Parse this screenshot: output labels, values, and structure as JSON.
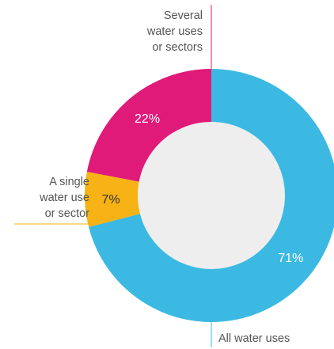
{
  "chart_data": {
    "type": "pie",
    "categories": [
      "All water uses",
      "A single water use or sector",
      "Several water uses or sectors"
    ],
    "values": [
      71,
      7,
      22
    ],
    "slice_labels": [
      "71%",
      "7%",
      "22%"
    ],
    "callouts": {
      "all": [
        "All water uses"
      ],
      "single": [
        "A single",
        "water use",
        "or sector"
      ],
      "several": [
        "Several",
        "water uses",
        "or sectors"
      ]
    },
    "colors": {
      "all": "#3BB9E3",
      "single": "#F7B215",
      "several": "#E01A79",
      "center": "#EEEEEE",
      "label_white": "#FFFFFF",
      "label_dark": "#333333"
    }
  }
}
